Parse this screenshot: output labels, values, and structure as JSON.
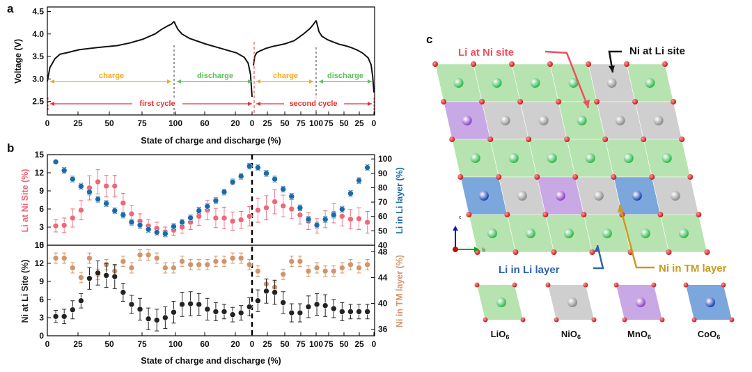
{
  "panels": {
    "a": "a",
    "b": "b",
    "c": "c"
  },
  "colors": {
    "charge": "#f5a623",
    "discharge": "#5cc15c",
    "cycle": "#e53030",
    "li_ni": "#f0677a",
    "li_li": "#1a6aa8",
    "ni_li": "#222222",
    "ni_tm": "#d4946a",
    "li_layer": "#2f62b0",
    "tm_layer": "#c99a1a"
  },
  "chart_data": [
    {
      "type": "line",
      "panel": "a",
      "ylabel": "Voltage (V)",
      "ylim": [
        2.2,
        4.6
      ],
      "yticks": [
        "2.5",
        "3.0",
        "3.5",
        "4.0",
        "4.5"
      ],
      "xlabel": "State of charge and discharge (%)",
      "xticks": [
        "0",
        "25",
        "50",
        "75",
        "100",
        "60",
        "20",
        "0",
        "25",
        "50",
        "75",
        "100",
        "75",
        "50",
        "25",
        "0"
      ],
      "annotations": {
        "charge1": "charge",
        "discharge1": "discharge",
        "charge2": "charge",
        "discharge2": "discharge",
        "cycle1": "first cycle",
        "cycle2": "second cycle"
      },
      "series": [
        {
          "segment": "charge-1",
          "soc": [
            0,
            2,
            6,
            10,
            15,
            25,
            40,
            55,
            65,
            75,
            85,
            90,
            95,
            98,
            100
          ],
          "voltage": [
            2.95,
            3.25,
            3.45,
            3.55,
            3.58,
            3.65,
            3.7,
            3.74,
            3.8,
            3.88,
            4.0,
            4.1,
            4.18,
            4.22,
            4.28
          ]
        },
        {
          "segment": "discharge-1",
          "soc": [
            100,
            98,
            95,
            90,
            80,
            60,
            40,
            20,
            10,
            5,
            2,
            0
          ],
          "voltage": [
            4.28,
            4.2,
            4.1,
            4.0,
            3.9,
            3.78,
            3.68,
            3.58,
            3.48,
            3.35,
            3.1,
            2.6
          ]
        },
        {
          "segment": "charge-2",
          "soc": [
            0,
            2,
            5,
            10,
            20,
            30,
            50,
            65,
            80,
            90,
            95,
            100
          ],
          "voltage": [
            3.3,
            3.5,
            3.58,
            3.62,
            3.68,
            3.72,
            3.78,
            3.85,
            4.0,
            4.12,
            4.2,
            4.3
          ]
        },
        {
          "segment": "discharge-2",
          "soc": [
            100,
            98,
            95,
            90,
            80,
            70,
            60,
            50,
            40,
            30,
            20,
            10,
            5,
            2,
            0
          ],
          "voltage": [
            4.3,
            4.2,
            4.05,
            3.95,
            3.87,
            3.82,
            3.77,
            3.74,
            3.7,
            3.65,
            3.58,
            3.47,
            3.32,
            3.05,
            2.7
          ]
        }
      ]
    },
    {
      "type": "scatter",
      "panel": "b-top",
      "ylabel_left": "Li at Ni Site (%)",
      "ylabel_right": "Li in Li layer (%)",
      "ylim_left": [
        0,
        15
      ],
      "ylim_right": [
        40,
        103
      ],
      "yticks_left": [
        "0",
        "3",
        "6",
        "9",
        "12",
        "15"
      ],
      "yticks_right": [
        "40",
        "50",
        "60",
        "70",
        "80",
        "90",
        "100"
      ],
      "x": [
        7,
        14,
        21,
        28,
        35,
        42,
        49,
        56,
        63,
        70,
        77,
        84,
        91,
        98,
        105,
        112,
        119,
        126,
        133,
        140,
        147,
        154,
        161,
        168,
        175,
        182,
        189,
        196,
        203,
        210,
        217,
        224,
        231,
        238,
        245,
        252,
        259,
        266
      ],
      "series": [
        {
          "name": "Li at Ni Site (%)",
          "values": [
            3.2,
            3.3,
            4.5,
            5.8,
            9.5,
            10.5,
            9.8,
            9.8,
            7.0,
            5.2,
            4.0,
            3.2,
            2.8,
            2.2,
            2.5,
            3.0,
            3.8,
            4.8,
            5.8,
            4.5,
            4.5,
            4.0,
            4.2,
            4.8,
            5.8,
            6.2,
            7.2,
            6.5,
            6.0,
            5.0,
            4.0,
            3.2,
            4.3,
            5.3,
            4.8,
            4.3,
            4.4,
            3.8
          ],
          "err": [
            1.0,
            1.2,
            1.5,
            1.6,
            2.0,
            2.0,
            1.8,
            1.8,
            1.6,
            1.4,
            1.2,
            1.0,
            1.0,
            0.8,
            0.9,
            1.0,
            1.2,
            1.5,
            1.6,
            1.6,
            1.8,
            1.5,
            1.4,
            1.6,
            2.0,
            2.0,
            2.0,
            1.8,
            1.6,
            1.5,
            1.4,
            1.2,
            1.4,
            1.6,
            1.6,
            1.6,
            1.8,
            1.8
          ]
        },
        {
          "name": "Li in Li layer (%)",
          "values": [
            98,
            92,
            86,
            81,
            77,
            72,
            69,
            64,
            61,
            56,
            54,
            51,
            49,
            48,
            53,
            56,
            59,
            64,
            67,
            71,
            77,
            84,
            88,
            95,
            94,
            90,
            86,
            79,
            74,
            66,
            58,
            54,
            58,
            61,
            65,
            76,
            85,
            94
          ],
          "err": [
            1,
            2,
            2,
            2,
            2,
            2,
            2,
            2,
            2,
            2,
            2,
            2,
            2,
            2,
            2,
            2,
            2,
            2,
            2,
            2,
            2,
            2,
            2,
            2,
            2,
            2,
            2,
            2,
            2,
            2,
            2,
            2,
            2,
            2,
            2,
            2,
            2,
            2
          ]
        }
      ]
    },
    {
      "type": "scatter",
      "panel": "b-bottom",
      "ylabel_left": "Ni at Li Site (%)",
      "ylabel_right": "Ni in TM layer (%)",
      "ylim_left": [
        0,
        15
      ],
      "ylim_right": [
        35,
        49
      ],
      "yticks_left": [
        "0",
        "3",
        "6",
        "9",
        "12",
        "15"
      ],
      "yticks_right": [
        "36",
        "40",
        "44",
        "48"
      ],
      "xlabel": "State of charge and discharge (%)",
      "xticks": [
        "0",
        "25",
        "50",
        "75",
        "100",
        "60",
        "20",
        "0",
        "25",
        "50",
        "75",
        "100",
        "75",
        "50",
        "25",
        "0"
      ],
      "x": [
        7,
        14,
        21,
        28,
        35,
        42,
        49,
        56,
        63,
        70,
        77,
        84,
        91,
        98,
        105,
        112,
        119,
        126,
        133,
        140,
        147,
        154,
        161,
        168,
        175,
        182,
        189,
        196,
        203,
        210,
        217,
        224,
        231,
        238,
        245,
        252,
        259,
        266
      ],
      "series": [
        {
          "name": "Ni at Li Site (%)",
          "values": [
            3.2,
            3.2,
            4.3,
            5.8,
            9.5,
            10.4,
            10.0,
            9.8,
            7.2,
            5.2,
            4.4,
            2.8,
            2.6,
            3.0,
            3.9,
            5.2,
            5.3,
            5.2,
            4.4,
            4.0,
            4.0,
            3.5,
            3.8,
            4.8,
            5.8,
            7.4,
            7.2,
            5.5,
            3.8,
            3.8,
            4.8,
            5.2,
            5.0,
            4.5,
            4.0,
            4.0,
            4.0,
            4.0
          ],
          "err": [
            1.0,
            1.2,
            1.5,
            1.2,
            1.8,
            2.0,
            2.0,
            2.0,
            1.5,
            1.5,
            1.8,
            1.8,
            1.8,
            1.8,
            1.8,
            2.0,
            2.0,
            1.8,
            1.8,
            1.5,
            1.2,
            1.2,
            1.2,
            1.5,
            1.8,
            2.0,
            2.0,
            1.8,
            1.5,
            1.5,
            1.8,
            1.8,
            1.8,
            1.5,
            1.5,
            1.2,
            1.2,
            1.2
          ]
        },
        {
          "name": "Ni in TM layer (%)",
          "values": [
            47,
            47,
            45.5,
            44,
            47,
            44.5,
            46,
            45,
            46.5,
            45.5,
            47.5,
            47.5,
            47,
            45.5,
            45.5,
            46.5,
            46,
            46,
            46,
            46.5,
            46.5,
            47,
            47,
            46,
            45,
            43,
            42.5,
            44.5,
            46.5,
            46.5,
            45,
            45.5,
            45,
            45,
            45.5,
            46,
            45.5,
            46
          ],
          "err": [
            0.8,
            0.8,
            0.8,
            0.8,
            0.8,
            0.8,
            0.8,
            0.8,
            0.8,
            0.8,
            0.8,
            0.8,
            0.8,
            0.8,
            0.8,
            0.8,
            0.8,
            0.8,
            0.8,
            0.8,
            0.8,
            0.8,
            0.8,
            0.8,
            0.8,
            0.8,
            0.8,
            0.8,
            0.8,
            0.8,
            0.8,
            0.8,
            0.8,
            0.8,
            0.8,
            0.8,
            0.8,
            0.8
          ]
        }
      ]
    }
  ],
  "structure": {
    "callouts": {
      "li_at_ni": "Li at Ni site",
      "ni_at_li": "Ni at Li site",
      "li_in_li": "Li in Li layer",
      "ni_in_tm": "Ni in TM layer"
    },
    "axes": {
      "c": "c",
      "b": "b"
    },
    "legend": [
      {
        "label": "LiO",
        "sub": "6",
        "fill": "#b7e3b0",
        "atom": "#2db84a"
      },
      {
        "label": "NiO",
        "sub": "6",
        "fill": "#cfcfcf",
        "atom": "#8c8c8c"
      },
      {
        "label": "MnO",
        "sub": "6",
        "fill": "#c9a8e6",
        "atom": "#8a3fc6"
      },
      {
        "label": "CoO",
        "sub": "6",
        "fill": "#7ba7dc",
        "atom": "#1f3fb3"
      }
    ],
    "rows": [
      [
        "Li",
        "Li",
        "Li",
        "Li",
        "Ni",
        "Li"
      ],
      [
        "Mn",
        "Ni",
        "Ni",
        "Li",
        "Ni",
        "Ni"
      ],
      [
        "Li",
        "Li",
        "Li",
        "Li",
        "Li",
        "Li"
      ],
      [
        "Co",
        "Ni",
        "Mn",
        "Ni",
        "Co",
        "Ni"
      ],
      [
        "Li",
        "Li",
        "Li",
        "Li",
        "Li",
        "Li"
      ]
    ]
  }
}
